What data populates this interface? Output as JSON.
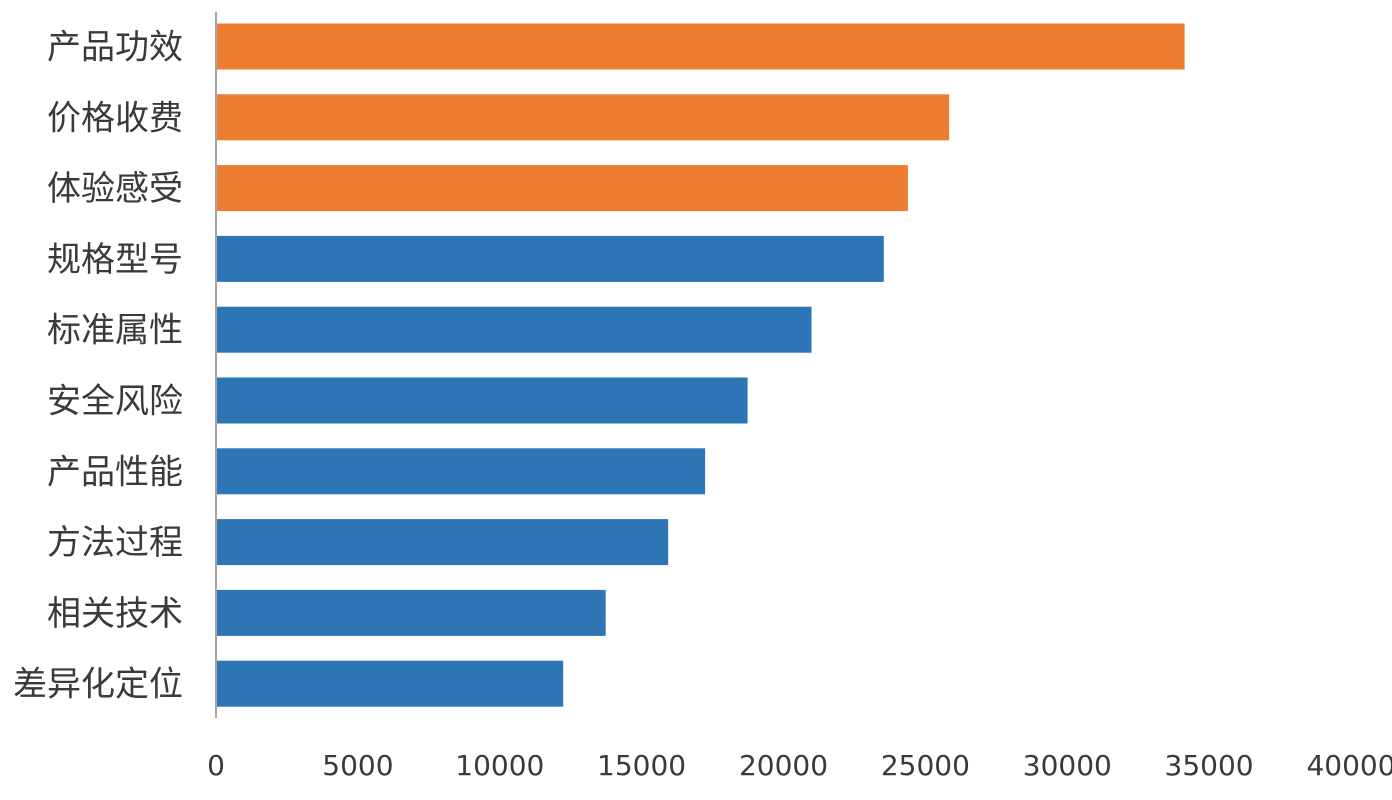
{
  "chart_data": {
    "type": "bar",
    "orientation": "horizontal",
    "title": "",
    "xlabel": "",
    "ylabel": "",
    "categories": [
      "产品功效",
      "价格收费",
      "体验感受",
      "规格型号",
      "标准属性",
      "安全风险",
      "产品性能",
      "方法过程",
      "相关技术",
      "差异化定位"
    ],
    "values": [
      34100,
      25800,
      24350,
      23500,
      20950,
      18700,
      17200,
      15900,
      13700,
      12200
    ],
    "highlight_count": 3,
    "xlim": [
      0,
      40000
    ],
    "xticks": [
      0,
      5000,
      10000,
      15000,
      20000,
      25000,
      30000,
      35000,
      40000
    ],
    "xtick_labels": [
      "0",
      "5000",
      "10000",
      "15000",
      "20000",
      "25000",
      "30000",
      "35000",
      "40000"
    ],
    "grid": false,
    "legend": "none",
    "colors": {
      "highlight": "#ED7D31",
      "default": "#2E75B6",
      "axis": "#A6A6A6"
    }
  }
}
